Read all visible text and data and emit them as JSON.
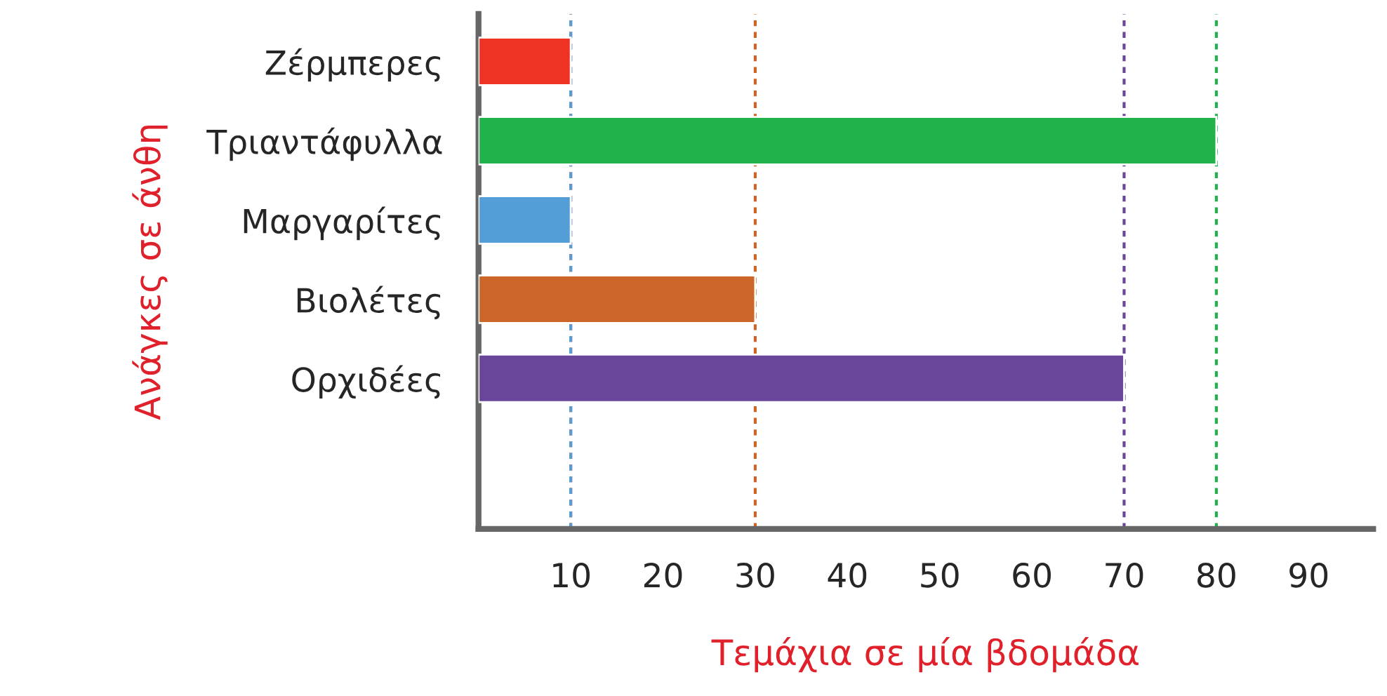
{
  "chart_data": {
    "type": "bar",
    "orientation": "horizontal",
    "xlabel": "Τεμάχια σε μία βδομάδα",
    "ylabel": "Ανάγκες σε άνθη",
    "categories": [
      "Ζέρμπερες",
      "Τριαντάφυλλα",
      "Μαργαρίτες",
      "Βιολέτες",
      "Ορχιδέες"
    ],
    "values": [
      10,
      80,
      10,
      30,
      70
    ],
    "colors": [
      "#ee3224",
      "#22b24c",
      "#549ed8",
      "#cc6628",
      "#6a469a"
    ],
    "xlim": [
      0,
      97
    ],
    "xticks": [
      10,
      20,
      30,
      40,
      50,
      60,
      70,
      80,
      90
    ],
    "grid": false,
    "ref_lines": [
      {
        "axis": "x",
        "value": 10,
        "color": "#ee3224",
        "line_style": "dashed"
      },
      {
        "axis": "x",
        "value": 80,
        "color": "#22b24c",
        "line_style": "dashed"
      },
      {
        "axis": "x",
        "value": 10,
        "color": "#549ed8",
        "line_style": "dashed"
      },
      {
        "axis": "x",
        "value": 30,
        "color": "#cc6628",
        "line_style": "dashed"
      },
      {
        "axis": "x",
        "value": 70,
        "color": "#6a469a",
        "line_style": "dashed"
      }
    ]
  }
}
